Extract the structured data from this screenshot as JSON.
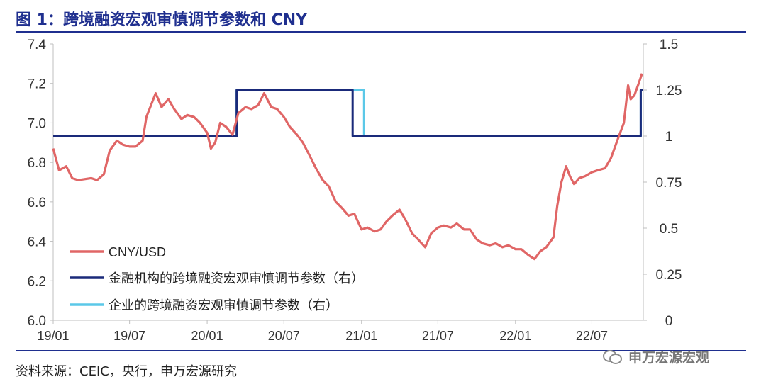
{
  "header": {
    "title": "图 1：跨境融资宏观审慎调节参数和 CNY"
  },
  "footer": {
    "source": "资料来源：CEIC，央行，申万宏源研究"
  },
  "watermark": {
    "text": "申万宏源宏观",
    "icon": "wechat-icon"
  },
  "chart_data": {
    "type": "line",
    "x_ticks": [
      "19/01",
      "19/07",
      "20/01",
      "20/07",
      "21/01",
      "21/07",
      "22/01",
      "22/07"
    ],
    "y_left": {
      "ticks": [
        "6.0",
        "6.2",
        "6.4",
        "6.6",
        "6.8",
        "7.0",
        "7.2",
        "7.4"
      ],
      "range": [
        6.0,
        7.4
      ]
    },
    "y_right": {
      "ticks": [
        "0",
        "0.25",
        "0.5",
        "0.75",
        "1",
        "1.25",
        "1.5"
      ],
      "range": [
        0,
        1.5
      ]
    },
    "x_range": [
      "2019-01",
      "2022-10"
    ],
    "legend": {
      "placement": "bottom-left"
    },
    "grid": false,
    "series": [
      {
        "name": "CNY/USD",
        "axis": "left",
        "color": "#e06666",
        "points": [
          [
            "2019-01",
            6.87
          ],
          [
            "2019-01-15",
            6.76
          ],
          [
            "2019-02",
            6.78
          ],
          [
            "2019-02-15",
            6.72
          ],
          [
            "2019-03",
            6.71
          ],
          [
            "2019-04",
            6.72
          ],
          [
            "2019-04-15",
            6.71
          ],
          [
            "2019-05",
            6.74
          ],
          [
            "2019-05-15",
            6.86
          ],
          [
            "2019-06",
            6.91
          ],
          [
            "2019-06-15",
            6.89
          ],
          [
            "2019-07",
            6.88
          ],
          [
            "2019-07-15",
            6.88
          ],
          [
            "2019-08",
            6.91
          ],
          [
            "2019-08-10",
            7.03
          ],
          [
            "2019-09",
            7.15
          ],
          [
            "2019-09-15",
            7.08
          ],
          [
            "2019-10",
            7.12
          ],
          [
            "2019-10-15",
            7.07
          ],
          [
            "2019-11",
            7.02
          ],
          [
            "2019-11-15",
            7.04
          ],
          [
            "2019-12",
            7.03
          ],
          [
            "2019-12-15",
            7.0
          ],
          [
            "2020-01",
            6.95
          ],
          [
            "2020-01-10",
            6.87
          ],
          [
            "2020-01-20",
            6.9
          ],
          [
            "2020-02",
            7.0
          ],
          [
            "2020-02-15",
            6.98
          ],
          [
            "2020-03",
            6.94
          ],
          [
            "2020-03-15",
            7.05
          ],
          [
            "2020-04",
            7.08
          ],
          [
            "2020-04-15",
            7.07
          ],
          [
            "2020-05",
            7.09
          ],
          [
            "2020-05-15",
            7.15
          ],
          [
            "2020-06",
            7.08
          ],
          [
            "2020-06-15",
            7.07
          ],
          [
            "2020-07",
            7.03
          ],
          [
            "2020-07-15",
            6.98
          ],
          [
            "2020-08",
            6.94
          ],
          [
            "2020-08-15",
            6.9
          ],
          [
            "2020-09",
            6.83
          ],
          [
            "2020-09-15",
            6.77
          ],
          [
            "2020-10",
            6.71
          ],
          [
            "2020-10-15",
            6.68
          ],
          [
            "2020-11",
            6.6
          ],
          [
            "2020-11-15",
            6.57
          ],
          [
            "2020-12",
            6.53
          ],
          [
            "2020-12-15",
            6.54
          ],
          [
            "2021-01",
            6.46
          ],
          [
            "2021-01-15",
            6.47
          ],
          [
            "2021-02",
            6.45
          ],
          [
            "2021-02-15",
            6.46
          ],
          [
            "2021-03",
            6.5
          ],
          [
            "2021-03-15",
            6.53
          ],
          [
            "2021-04",
            6.56
          ],
          [
            "2021-04-15",
            6.51
          ],
          [
            "2021-05",
            6.44
          ],
          [
            "2021-05-15",
            6.41
          ],
          [
            "2021-06",
            6.37
          ],
          [
            "2021-06-15",
            6.44
          ],
          [
            "2021-07",
            6.47
          ],
          [
            "2021-07-15",
            6.48
          ],
          [
            "2021-08",
            6.47
          ],
          [
            "2021-08-15",
            6.49
          ],
          [
            "2021-09",
            6.46
          ],
          [
            "2021-09-15",
            6.46
          ],
          [
            "2021-10",
            6.41
          ],
          [
            "2021-10-15",
            6.39
          ],
          [
            "2021-11",
            6.38
          ],
          [
            "2021-11-15",
            6.39
          ],
          [
            "2021-12",
            6.37
          ],
          [
            "2021-12-15",
            6.38
          ],
          [
            "2022-01",
            6.36
          ],
          [
            "2022-01-15",
            6.36
          ],
          [
            "2022-02",
            6.33
          ],
          [
            "2022-02-15",
            6.31
          ],
          [
            "2022-03",
            6.35
          ],
          [
            "2022-03-15",
            6.37
          ],
          [
            "2022-04",
            6.42
          ],
          [
            "2022-04-10",
            6.58
          ],
          [
            "2022-04-20",
            6.7
          ],
          [
            "2022-05",
            6.78
          ],
          [
            "2022-05-10",
            6.73
          ],
          [
            "2022-05-20",
            6.69
          ],
          [
            "2022-06",
            6.72
          ],
          [
            "2022-06-15",
            6.73
          ],
          [
            "2022-07",
            6.75
          ],
          [
            "2022-07-15",
            6.76
          ],
          [
            "2022-08",
            6.77
          ],
          [
            "2022-08-15",
            6.82
          ],
          [
            "2022-09",
            6.92
          ],
          [
            "2022-09-15",
            7.0
          ],
          [
            "2022-09-25",
            7.19
          ],
          [
            "2022-10",
            7.12
          ],
          [
            "2022-10-10",
            7.14
          ],
          [
            "2022-10-20",
            7.2
          ],
          [
            "2022-10-28",
            7.25
          ]
        ]
      },
      {
        "name": "金融机构的跨境融资宏观审慎调节参数（右）",
        "axis": "right",
        "color": "#1a2a7a",
        "step": true,
        "points": [
          [
            "2019-01",
            1
          ],
          [
            "2020-03-11",
            1
          ],
          [
            "2020-03-11",
            1.25
          ],
          [
            "2020-12-11",
            1.25
          ],
          [
            "2020-12-11",
            1
          ],
          [
            "2022-10-25",
            1
          ],
          [
            "2022-10-25",
            1.25
          ],
          [
            "2022-10-30",
            1.25
          ]
        ]
      },
      {
        "name": "企业的跨境融资宏观审慎调节参数（右）",
        "axis": "right",
        "color": "#5bc8e8",
        "step": true,
        "points": [
          [
            "2019-01",
            1
          ],
          [
            "2020-03-11",
            1
          ],
          [
            "2020-03-11",
            1.25
          ],
          [
            "2021-01-07",
            1.25
          ],
          [
            "2021-01-07",
            1
          ],
          [
            "2022-10-25",
            1
          ],
          [
            "2022-10-25",
            1.25
          ],
          [
            "2022-10-30",
            1.25
          ]
        ]
      }
    ]
  }
}
